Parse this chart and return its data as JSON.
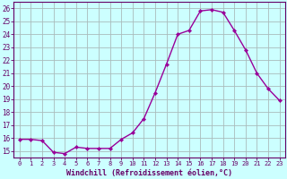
{
  "x": [
    0,
    1,
    2,
    3,
    4,
    5,
    6,
    7,
    8,
    9,
    10,
    11,
    12,
    13,
    14,
    15,
    16,
    17,
    18,
    19,
    20,
    21,
    22,
    23
  ],
  "y": [
    15.9,
    15.9,
    15.8,
    14.9,
    14.8,
    15.3,
    15.2,
    15.2,
    15.2,
    15.9,
    16.4,
    17.5,
    19.5,
    21.7,
    24.0,
    24.3,
    25.8,
    25.9,
    25.7,
    24.3,
    22.8,
    21.0,
    19.8,
    18.9
  ],
  "line_color": "#990099",
  "marker": "D",
  "marker_size": 2.2,
  "bg_color": "#ccffff",
  "grid_color": "#aabbbb",
  "xlabel": "Windchill (Refroidissement éolien,°C)",
  "xlabel_color": "#660066",
  "tick_color": "#660066",
  "ylim": [
    14.5,
    26.5
  ],
  "xlim": [
    -0.5,
    23.5
  ],
  "yticks": [
    15,
    16,
    17,
    18,
    19,
    20,
    21,
    22,
    23,
    24,
    25,
    26
  ],
  "xtick_labels": [
    "0",
    "1",
    "2",
    "3",
    "4",
    "5",
    "6",
    "7",
    "8",
    "9",
    "10",
    "11",
    "12",
    "13",
    "14",
    "15",
    "16",
    "17",
    "18",
    "19",
    "20",
    "21",
    "22",
    "23"
  ],
  "spine_color": "#660066",
  "linewidth": 1.0,
  "xtick_fontsize": 5.0,
  "ytick_fontsize": 5.5,
  "xlabel_fontsize": 6.0
}
